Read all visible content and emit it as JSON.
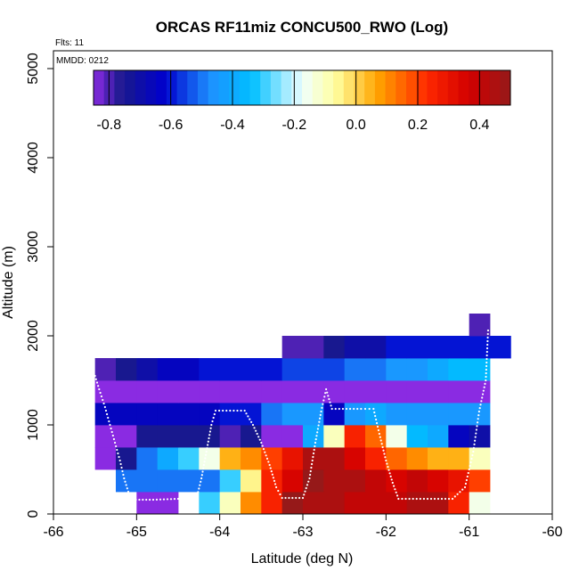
{
  "chart_data": {
    "type": "heatmap",
    "title": "ORCAS RF11miz CONCU500_RWO (Log)",
    "annotations": [
      "Flts: 11",
      "MMDD: 0212"
    ],
    "xlabel": "Latitude (deg N)",
    "ylabel": "Altitude (m)",
    "xlim": [
      -66,
      -60
    ],
    "ylim": [
      0,
      5200
    ],
    "x_ticks": [
      "-66",
      "-65",
      "-64",
      "-63",
      "-62",
      "-61",
      "-60"
    ],
    "y_ticks": [
      "0",
      "1000",
      "2000",
      "3000",
      "4000",
      "5000"
    ],
    "colorbar": {
      "range": [
        -0.85,
        0.5
      ],
      "ticks": [
        "-0.8",
        "-0.6",
        "-0.4",
        "-0.2",
        "0.0",
        "0.2",
        "0.4"
      ],
      "placement": "top-inside"
    },
    "cell_width_deg": 0.25,
    "cell_height_m": 250,
    "rows": [
      {
        "alt_low": 0,
        "lat_start": -65.25,
        "values": [
          null,
          -0.85,
          -0.85,
          null,
          -0.3,
          -0.1,
          0.1,
          0.25,
          0.5,
          0.45,
          0.45,
          0.4,
          0.4,
          0.4,
          0.45,
          0.45,
          0.25,
          -0.15
        ]
      },
      {
        "alt_low": 250,
        "lat_start": -65.25,
        "values": [
          -0.5,
          -0.5,
          -0.5,
          -0.5,
          -0.5,
          -0.3,
          -0.05,
          0.25,
          0.35,
          0.5,
          0.45,
          0.45,
          0.4,
          0.35,
          0.4,
          0.35,
          0.3,
          0.2
        ]
      },
      {
        "alt_low": 500,
        "lat_start": -65.5,
        "values": [
          -0.85,
          -0.75,
          -0.5,
          -0.4,
          -0.3,
          -0.15,
          0.05,
          0.1,
          0.2,
          0.3,
          0.45,
          0.45,
          0.35,
          0.25,
          0.15,
          0.1,
          0.05,
          0.05,
          -0.1
        ]
      },
      {
        "alt_low": 750,
        "lat_start": -65.5,
        "values": [
          -0.85,
          -0.85,
          -0.75,
          -0.75,
          -0.75,
          -0.75,
          -0.8,
          -0.75,
          -0.85,
          -0.85,
          -0.4,
          -0.1,
          0.25,
          0.15,
          -0.15,
          -0.35,
          -0.4,
          -0.65,
          -0.7
        ]
      },
      {
        "alt_low": 1000,
        "lat_start": -65.5,
        "values": [
          -0.65,
          -0.65,
          -0.65,
          -0.65,
          -0.65,
          -0.65,
          -0.6,
          -0.6,
          -0.5,
          -0.45,
          -0.45,
          -0.65,
          -0.45,
          -0.4,
          -0.45,
          -0.45,
          -0.45,
          -0.45,
          -0.45
        ]
      },
      {
        "alt_low": 1250,
        "lat_start": -65.5,
        "values": [
          -0.85,
          -0.85,
          -0.85,
          -0.85,
          -0.85,
          -0.85,
          -0.85,
          -0.85,
          -0.85,
          -0.85,
          -0.85,
          -0.85,
          -0.85,
          -0.85,
          -0.85,
          -0.85,
          -0.85,
          -0.85,
          -0.85
        ]
      },
      {
        "alt_low": 1500,
        "lat_start": -65.5,
        "values": [
          -0.8,
          -0.75,
          -0.7,
          -0.65,
          -0.65,
          -0.6,
          -0.6,
          -0.6,
          -0.6,
          -0.55,
          -0.55,
          -0.55,
          -0.5,
          -0.5,
          -0.45,
          -0.45,
          -0.4,
          -0.35,
          -0.35
        ]
      },
      {
        "alt_low": 1750,
        "lat_start": -63.25,
        "values": [
          -0.8,
          -0.8,
          -0.75,
          -0.7,
          -0.7,
          -0.6,
          -0.6,
          -0.6,
          -0.6,
          -0.6,
          -0.6
        ]
      },
      {
        "alt_low": 2000,
        "lat_start": -61.0,
        "values": [
          -0.8
        ]
      }
    ],
    "flight_track": {
      "color": "#ffffff",
      "points": [
        [
          -65.5,
          1550
        ],
        [
          -65.45,
          1400
        ],
        [
          -65.38,
          1200
        ],
        [
          -65.32,
          1000
        ],
        [
          -65.26,
          800
        ],
        [
          -65.2,
          600
        ],
        [
          -65.15,
          400
        ],
        [
          -65.1,
          250
        ],
        [
          -65.05,
          160
        ],
        [
          -64.8,
          160
        ],
        [
          -64.5,
          170
        ],
        [
          -64.28,
          170
        ],
        [
          -64.22,
          400
        ],
        [
          -64.16,
          700
        ],
        [
          -64.1,
          1000
        ],
        [
          -64.05,
          1160
        ],
        [
          -63.7,
          1160
        ],
        [
          -63.6,
          1000
        ],
        [
          -63.5,
          800
        ],
        [
          -63.4,
          550
        ],
        [
          -63.32,
          300
        ],
        [
          -63.25,
          180
        ],
        [
          -63.0,
          180
        ],
        [
          -62.92,
          400
        ],
        [
          -62.85,
          800
        ],
        [
          -62.78,
          1150
        ],
        [
          -62.72,
          1400
        ],
        [
          -62.65,
          1180
        ],
        [
          -62.3,
          1180
        ],
        [
          -62.15,
          1180
        ],
        [
          -62.08,
          900
        ],
        [
          -62.0,
          600
        ],
        [
          -61.92,
          350
        ],
        [
          -61.85,
          170
        ],
        [
          -61.5,
          170
        ],
        [
          -61.2,
          170
        ],
        [
          -61.05,
          300
        ],
        [
          -60.95,
          700
        ],
        [
          -60.88,
          1150
        ],
        [
          -60.8,
          1500
        ],
        [
          -60.77,
          2100
        ]
      ]
    }
  }
}
